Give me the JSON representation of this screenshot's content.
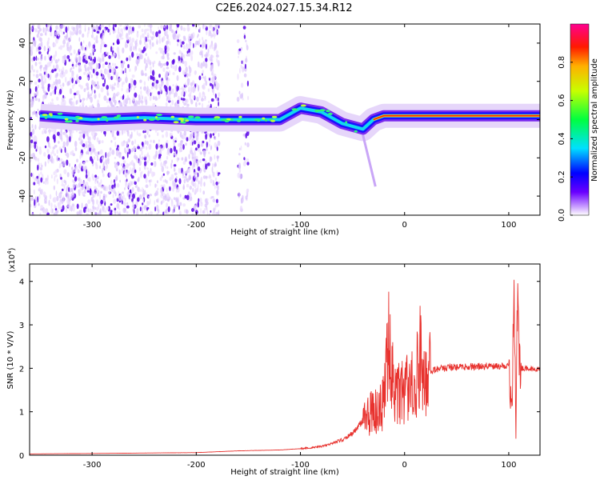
{
  "title": "C2E6.2024.027.15.34.R12",
  "colors": {
    "snr_line": "#e8322e",
    "axis": "#000000",
    "spectrum_dark": "#5a00d8",
    "spectrum_light": "#e6d6fa"
  },
  "chart_data": [
    {
      "type": "heatmap",
      "xlabel": "Height of straight line (km)",
      "ylabel": "Frequency (Hz)",
      "xlim": [
        -360,
        130
      ],
      "ylim": [
        -50,
        50
      ],
      "xticks": [
        -300,
        -200,
        -100,
        0,
        100
      ],
      "yticks": [
        -40,
        -20,
        0,
        20,
        40
      ],
      "colorbar": {
        "label": "Normalized spectral amplitude",
        "range": [
          0,
          1
        ],
        "ticks": [
          "0.0",
          "0.2",
          "0.4",
          "0.6",
          "0.8"
        ],
        "tick_values": [
          0.0,
          0.2,
          0.4,
          0.6,
          0.8
        ],
        "colormap": "rainbow (violet → blue → cyan → green → yellow → red → magenta)"
      },
      "noise_regions": [
        {
          "x": [
            -360,
            -178
          ],
          "density": "dense"
        },
        {
          "x": [
            -160,
            -150
          ],
          "density": "sparse"
        }
      ],
      "ridge": [
        {
          "x": -350,
          "y": 2
        },
        {
          "x": -300,
          "y": 0
        },
        {
          "x": -250,
          "y": 1
        },
        {
          "x": -200,
          "y": 0
        },
        {
          "x": -180,
          "y": 0
        },
        {
          "x": -150,
          "y": 0
        },
        {
          "x": -120,
          "y": 0
        },
        {
          "x": -100,
          "y": 6
        },
        {
          "x": -80,
          "y": 4
        },
        {
          "x": -60,
          "y": -2
        },
        {
          "x": -40,
          "y": -5
        },
        {
          "x": -30,
          "y": 0
        },
        {
          "x": -20,
          "y": 2
        },
        {
          "x": 0,
          "y": 2
        },
        {
          "x": 50,
          "y": 2
        },
        {
          "x": 100,
          "y": 2
        },
        {
          "x": 130,
          "y": 2
        }
      ]
    },
    {
      "type": "line",
      "xlabel": "Height of straight line (km)",
      "ylabel": "SNR (10 * V/V)",
      "scale_note": "(x10",
      "scale_exp": "4",
      "scale_close": ")",
      "xlim": [
        -360,
        130
      ],
      "ylim": [
        0,
        4.4
      ],
      "xticks": [
        -300,
        -200,
        -100,
        0,
        100
      ],
      "yticks": [
        0,
        1,
        2,
        3,
        4
      ],
      "series": [
        {
          "points": [
            [
              -360,
              0.03
            ],
            [
              -300,
              0.04
            ],
            [
              -250,
              0.05
            ],
            [
              -200,
              0.06
            ],
            [
              -160,
              0.1
            ],
            [
              -120,
              0.12
            ],
            [
              -100,
              0.15
            ],
            [
              -80,
              0.2
            ],
            [
              -60,
              0.35
            ],
            [
              -50,
              0.5
            ],
            [
              -40,
              0.8
            ],
            [
              -30,
              1.0
            ],
            [
              -20,
              1.2
            ],
            [
              -14,
              2.85
            ],
            [
              -10,
              1.3
            ],
            [
              0,
              1.5
            ],
            [
              10,
              1.6
            ],
            [
              15,
              2.4
            ],
            [
              20,
              1.7
            ],
            [
              25,
              1.9
            ],
            [
              30,
              1.98
            ],
            [
              50,
              2.03
            ],
            [
              80,
              2.05
            ],
            [
              100,
              2.05
            ],
            [
              103,
              0.9
            ],
            [
              105,
              4.0
            ],
            [
              107,
              0.3
            ],
            [
              108,
              4.4
            ],
            [
              110,
              2.0
            ],
            [
              130,
              1.98
            ]
          ]
        }
      ]
    }
  ]
}
